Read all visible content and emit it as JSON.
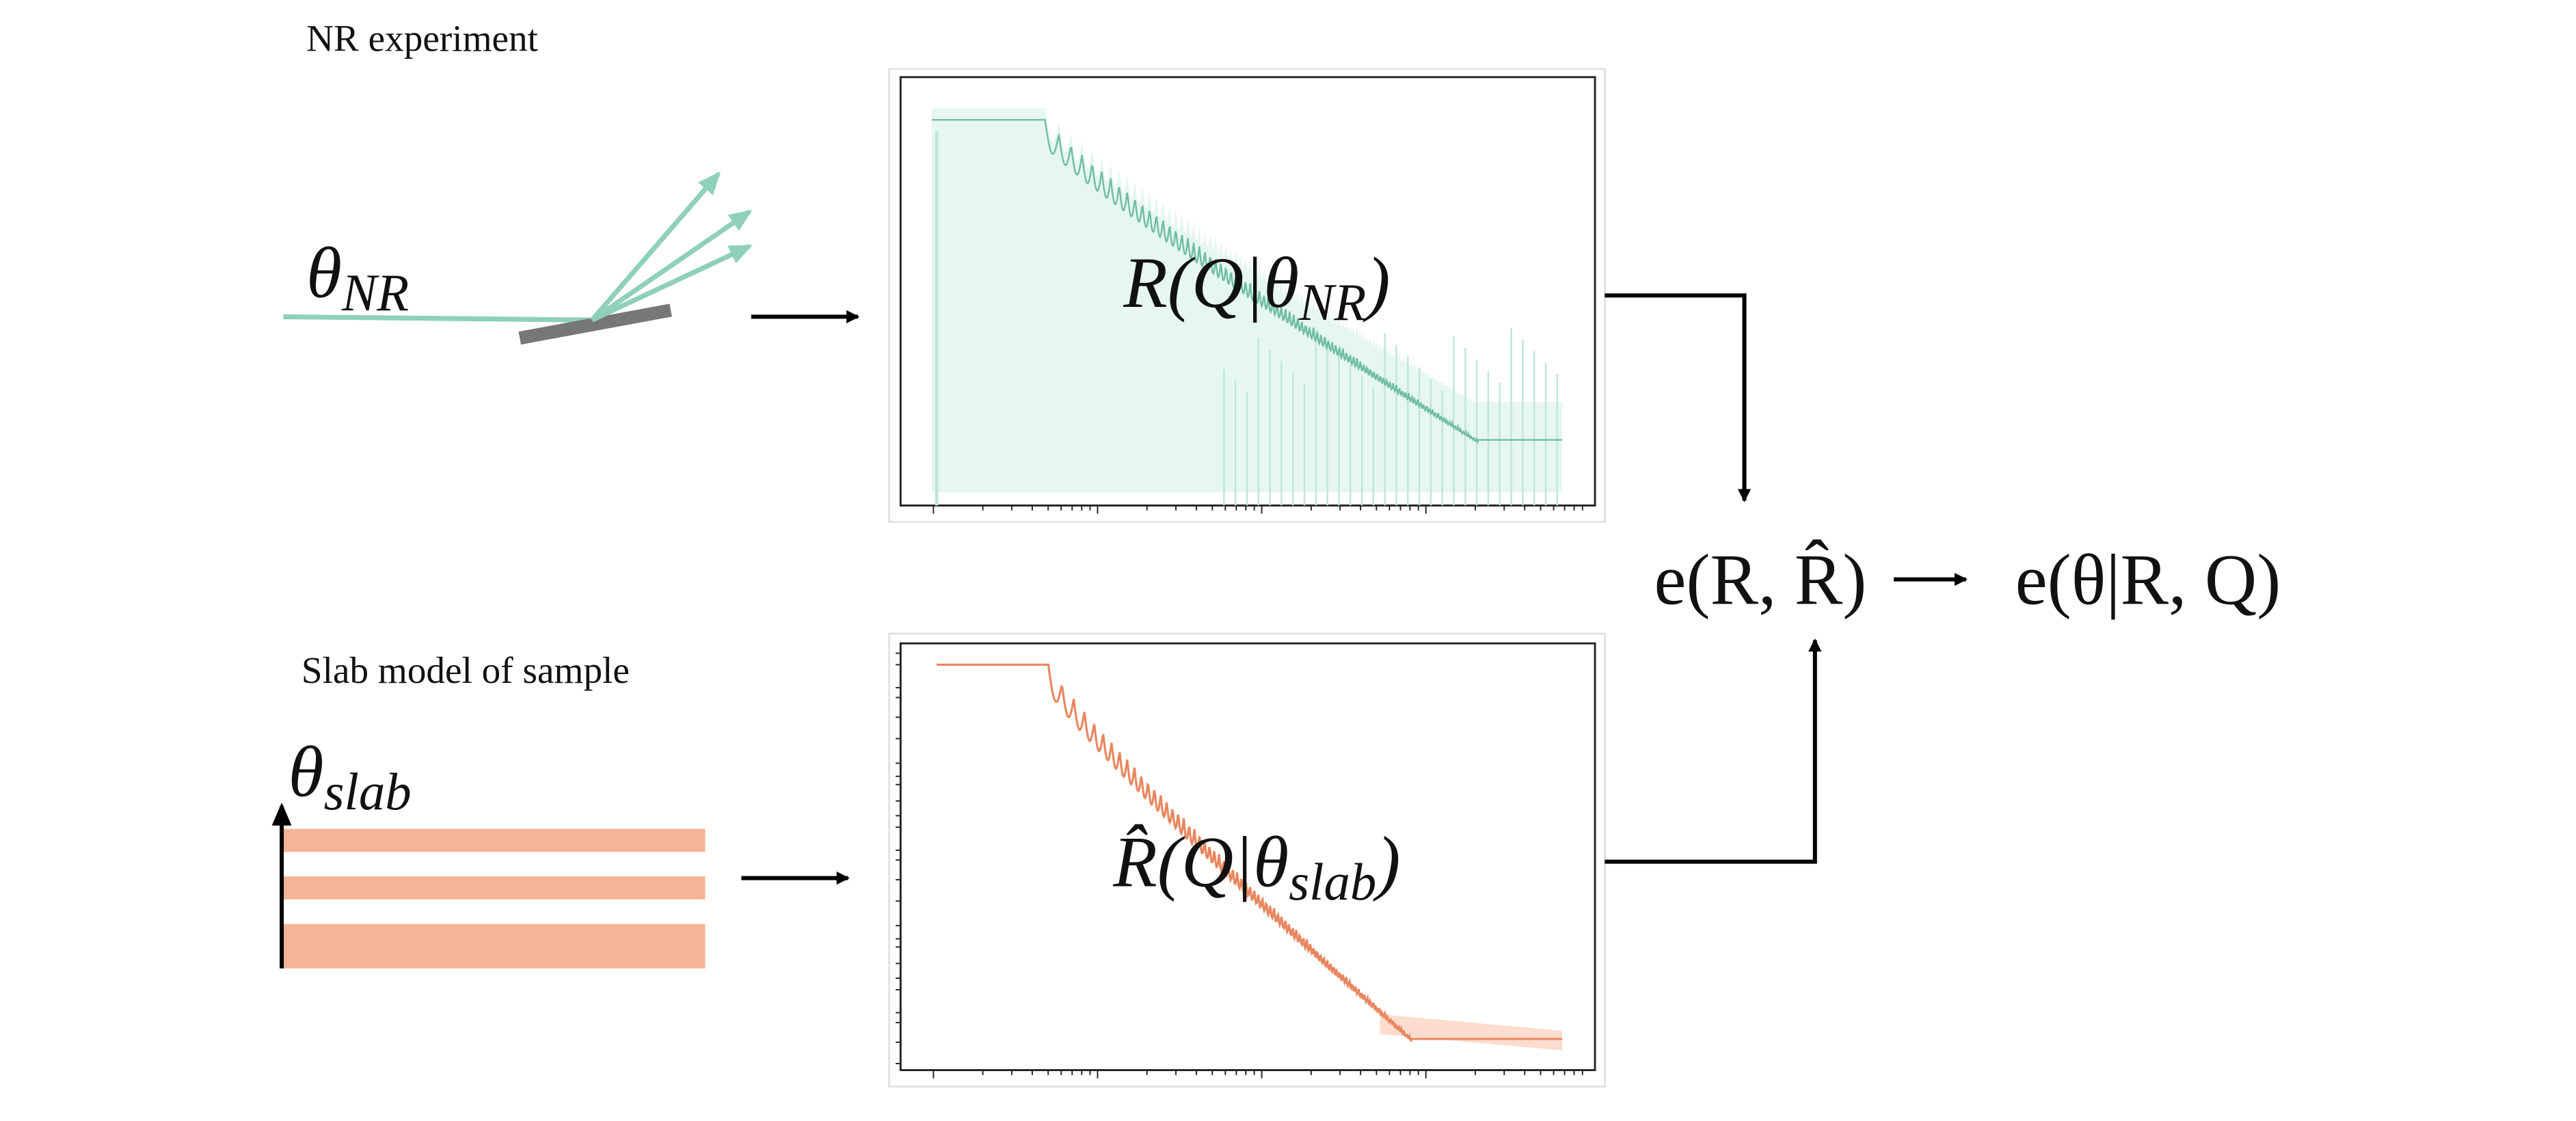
{
  "nr_experiment": {
    "label": "NR experiment",
    "parameter": {
      "symbol": "θ",
      "subscript": "NR"
    },
    "plot_label": {
      "main": "R(Q|θ",
      "subscript": "NR",
      "close": ")"
    }
  },
  "slab_model": {
    "label": "Slab model of sample",
    "parameter": {
      "symbol": "θ",
      "subscript": "slab"
    },
    "plot_label": {
      "main": "R̂(Q|θ",
      "subscript": "slab",
      "close": ")"
    }
  },
  "comparison": {
    "error": "e(R, R̂)",
    "posterior": "e(θ|R, Q)"
  }
}
